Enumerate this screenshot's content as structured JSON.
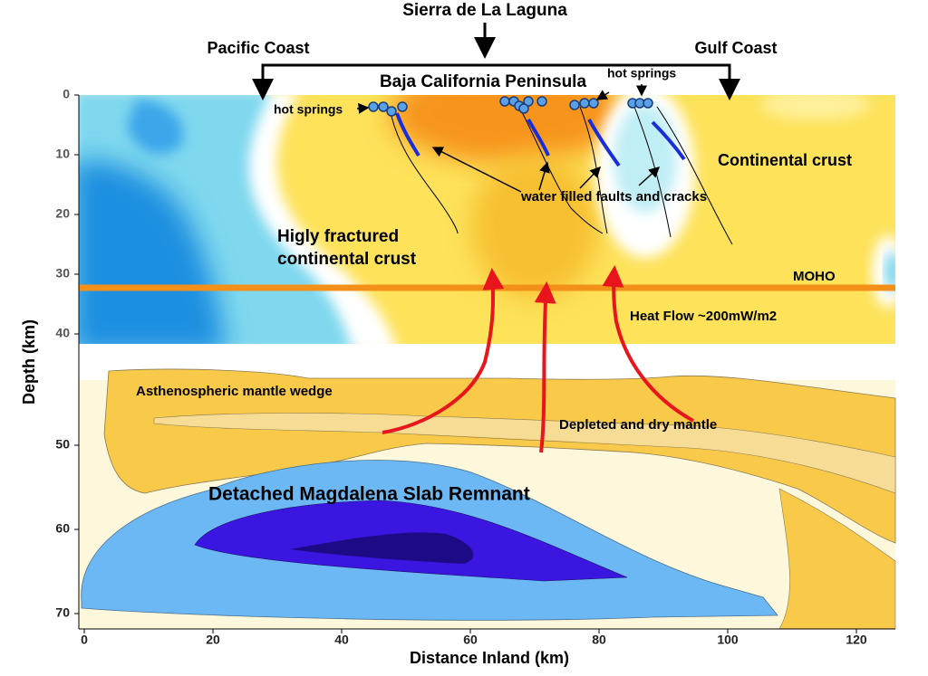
{
  "header": {
    "title": "Sierra de La Laguna",
    "left_coast": "Pacific Coast",
    "right_coast": "Gulf Coast",
    "peninsula": "Baja California Peninsula"
  },
  "labels": {
    "hot_springs_left": "hot springs",
    "hot_springs_right": "hot springs",
    "continental_crust": "Continental crust",
    "faults": "water filled faults and cracks",
    "fractured_line1": "Higly fractured",
    "fractured_line2": "continental crust",
    "moho": "MOHO",
    "heat_flow": "Heat Flow ~200mW/m2",
    "wedge": "Asthenospheric mantle wedge",
    "depleted": "Depleted and dry mantle",
    "slab": "Detached Magdalena Slab Remnant"
  },
  "x_axis": {
    "label": "Distance Inland (km)",
    "ticks": [
      0,
      20,
      40,
      60,
      80,
      100,
      120
    ]
  },
  "y_axis": {
    "label": "Depth (km)",
    "upper_ticks": [
      0,
      10,
      20,
      30,
      40
    ],
    "lower_ticks": [
      50,
      60,
      70
    ]
  }
}
